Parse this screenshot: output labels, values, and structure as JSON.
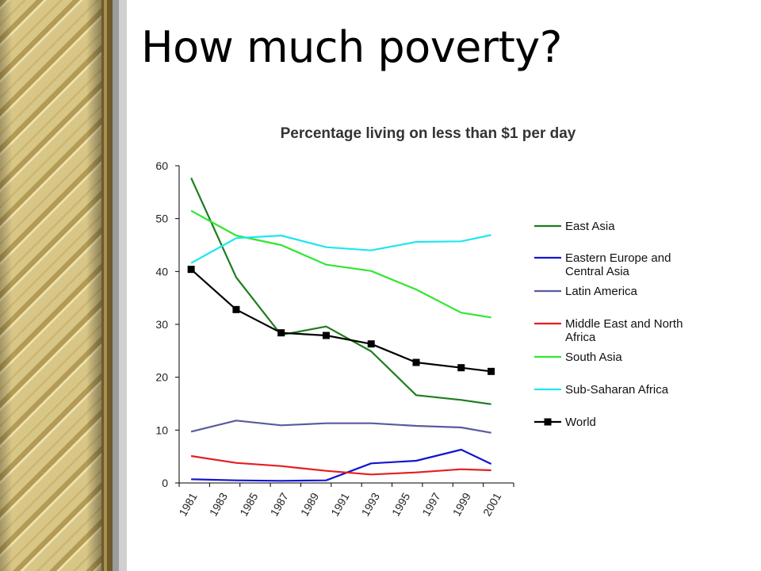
{
  "slide": {
    "title": "How much poverty?"
  },
  "chart_data": {
    "type": "line",
    "title": "Percentage living on less than $1 per day",
    "xlabel": "",
    "ylabel": "",
    "ylim": [
      0,
      60
    ],
    "yticks": [
      "0",
      "10",
      "20",
      "30",
      "40",
      "50",
      "60"
    ],
    "xticks": [
      "1981",
      "1983",
      "1985",
      "1987",
      "1989",
      "1991",
      "1993",
      "1995",
      "1997",
      "1999",
      "2001"
    ],
    "grid": false,
    "legend": "right",
    "x": [
      1981,
      1984,
      1987,
      1990,
      1993,
      1996,
      1999,
      2001
    ],
    "series": [
      {
        "name": "East Asia",
        "color": "#1e7d1e",
        "marker": "none",
        "values": [
          57.7,
          38.9,
          28.0,
          29.6,
          24.9,
          16.6,
          15.7,
          14.9
        ]
      },
      {
        "name": "Eastern Europe and Central Asia",
        "color": "#1414d2",
        "marker": "none",
        "values": [
          0.7,
          0.5,
          0.4,
          0.5,
          3.7,
          4.2,
          6.3,
          3.6
        ]
      },
      {
        "name": "Latin America",
        "color": "#5a5aa0",
        "marker": "none",
        "values": [
          9.7,
          11.8,
          10.9,
          11.3,
          11.3,
          10.8,
          10.5,
          9.5
        ]
      },
      {
        "name": "Middle East and North Africa",
        "color": "#e61e1e",
        "marker": "none",
        "values": [
          5.1,
          3.8,
          3.2,
          2.3,
          1.6,
          2.0,
          2.6,
          2.4
        ]
      },
      {
        "name": "South Asia",
        "color": "#32e632",
        "marker": "none",
        "values": [
          51.5,
          46.8,
          45.0,
          41.3,
          40.1,
          36.6,
          32.2,
          31.3
        ]
      },
      {
        "name": "Sub-Saharan Africa",
        "color": "#1ee6f0",
        "marker": "none",
        "values": [
          41.6,
          46.3,
          46.8,
          44.6,
          44.0,
          45.6,
          45.7,
          46.9
        ]
      },
      {
        "name": "World",
        "color": "#000000",
        "marker": "square",
        "values": [
          40.4,
          32.8,
          28.4,
          27.9,
          26.3,
          22.8,
          21.8,
          21.1
        ]
      }
    ],
    "legend_lines": [
      [
        "East Asia"
      ],
      [
        "Eastern Europe and",
        "Central Asia"
      ],
      [
        "Latin America"
      ],
      [
        "Middle East and North",
        "Africa"
      ],
      [
        "South Asia"
      ],
      [
        "Sub-Saharan Africa"
      ],
      [
        "World"
      ]
    ]
  }
}
